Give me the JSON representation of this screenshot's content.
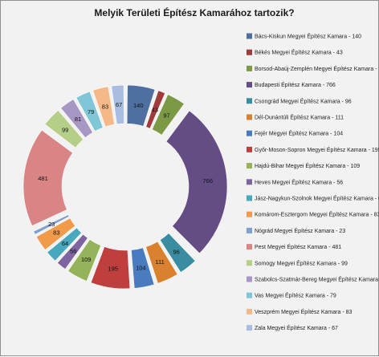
{
  "chart_data": {
    "type": "pie",
    "subtype": "donut-exploded",
    "title": "Melyik Területi Építész Kamarához tartozik?",
    "legend_position": "right",
    "series": [
      {
        "label": "Bács-Kiskun Megyei Építész Kamara",
        "value": 140,
        "color": "#4f6fa0"
      },
      {
        "label": "Békés Megyei Építész Kamara",
        "value": 43,
        "color": "#a13a3a"
      },
      {
        "label": "Borsod-Abaúj-Zemplén Megyei Építész Kamara",
        "value": 97,
        "color": "#7c9a45"
      },
      {
        "label": "Budapesti Építész Kamara",
        "value": 766,
        "color": "#644d84"
      },
      {
        "label": "Csongrád Megyei Építész Kamara",
        "value": 96,
        "color": "#3a8da1"
      },
      {
        "label": "Dél-Dunántúli Építész Kamara",
        "value": 111,
        "color": "#d9812f"
      },
      {
        "label": "Fejér Megyei Építész Kamara",
        "value": 104,
        "color": "#4a7bbf"
      },
      {
        "label": "Győr-Moson-Sopron Megyei Építész Kamara",
        "value": 195,
        "color": "#bf3f3f"
      },
      {
        "label": "Hajdú-Bihar Megyei Építész Kamara",
        "value": 109,
        "color": "#94b35a"
      },
      {
        "label": "Heves Megyei Építész Kamara",
        "value": 56,
        "color": "#7e65a0"
      },
      {
        "label": "Jász-Nagykun-Szolnok Megyei Építész Kamara",
        "value": 64,
        "color": "#48a8bd"
      },
      {
        "label": "Komárom-Esztergom Megyei Építész Kamara",
        "value": 83,
        "color": "#f09a4a"
      },
      {
        "label": "Nógrád Megyei Építész Kamara",
        "value": 23,
        "color": "#7f9fd0"
      },
      {
        "label": "Pest Megyei Építész Kamara",
        "value": 481,
        "color": "#d98585"
      },
      {
        "label": "Somogy Megyei Építész Kamara",
        "value": 99,
        "color": "#b5cf88"
      },
      {
        "label": "Szabolcs-Szatmár-Bereg Megyei Építész Kamara",
        "value": 81,
        "color": "#a797c4"
      },
      {
        "label": "Vas Megyei Építész Kamara",
        "value": 79,
        "color": "#7fc6d6"
      },
      {
        "label": "Veszprém Megyei Építész Kamara",
        "value": 83,
        "color": "#f5b888"
      },
      {
        "label": "Zala Megyei Építész Kamara",
        "value": 67,
        "color": "#a9bde0"
      }
    ]
  }
}
